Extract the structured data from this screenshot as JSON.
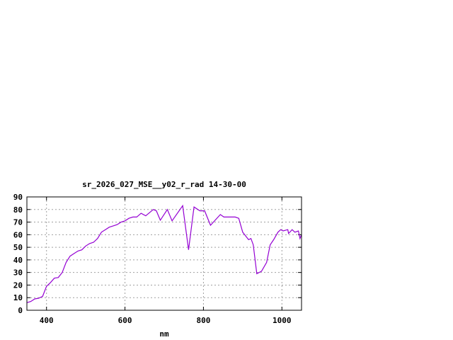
{
  "chart_data": {
    "type": "line",
    "title": "sr_2026_027_MSE__y02_r_rad 14-30-00",
    "xlabel": "nm",
    "ylabel": "",
    "xlim": [
      350,
      1050
    ],
    "ylim": [
      0,
      90
    ],
    "xticks": [
      400,
      600,
      800,
      1000
    ],
    "yticks": [
      0,
      10,
      20,
      30,
      40,
      50,
      60,
      70,
      80,
      90
    ],
    "grid": true,
    "line_color": "#9400d3",
    "series": [
      {
        "x": [
          350,
          360,
          370,
          380,
          390,
          400,
          410,
          420,
          430,
          440,
          450,
          460,
          470,
          480,
          490,
          500,
          510,
          520,
          530,
          540,
          550,
          560,
          570,
          580,
          590,
          600,
          610,
          620,
          630,
          641,
          653,
          672,
          680,
          690,
          708,
          720,
          747,
          762,
          776,
          791,
          803,
          818,
          843,
          852,
          881,
          890,
          900,
          915,
          921,
          927,
          936,
          948,
          961,
          970,
          979,
          990,
          997,
          1003,
          1015,
          1017,
          1026,
          1033,
          1042,
          1046,
          1050
        ],
        "y": [
          6,
          7,
          9,
          9.5,
          11,
          19,
          22,
          25.5,
          26,
          30,
          38,
          43,
          45,
          47,
          48,
          51,
          53,
          54,
          57,
          62,
          64,
          66,
          67,
          68,
          70,
          71,
          73,
          74,
          74,
          77,
          75,
          80,
          79,
          71.5,
          80,
          71,
          83,
          48,
          82,
          79,
          79,
          67.5,
          76,
          74,
          74,
          73,
          62,
          56,
          57,
          52,
          29,
          31,
          38,
          52,
          56,
          62,
          64,
          63,
          64,
          61,
          64,
          62,
          63,
          57,
          60
        ]
      }
    ]
  }
}
